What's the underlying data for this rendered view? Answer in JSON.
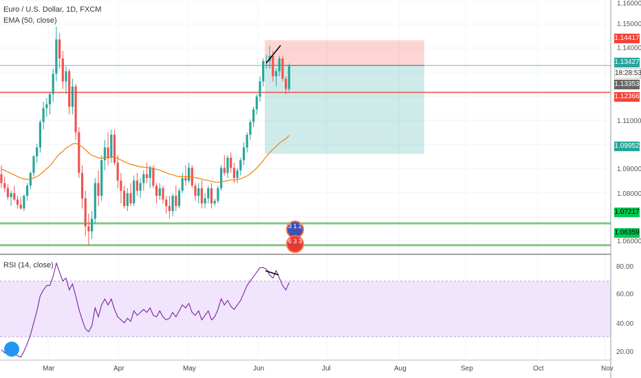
{
  "header": {
    "symbol_title": "Euro / U.S. Dollar, 1D, FXCM",
    "ema_label": "EMA (50, close)",
    "rsi_label": "RSI (14, close)"
  },
  "price_axis": {
    "labels": [
      "1.16000",
      "1.15000",
      "1.14000",
      "1.11000",
      "1.09000",
      "1.08000",
      "1.06000"
    ],
    "tags": {
      "t1": "1.14417",
      "t2": "1.13427",
      "timer": "18:28:53",
      "t3": "1.13353",
      "t4": "1.12366",
      "t5": "1.09952",
      "t6": "1.07217",
      "t7": "1.06359"
    }
  },
  "rsi_axis": {
    "labels": [
      "80.00",
      "60.00",
      "40.00",
      "20.00"
    ]
  },
  "time_axis": {
    "labels": [
      "Mar",
      "Apr",
      "May",
      "Jun",
      "Jul",
      "Aug",
      "Sep",
      "Oct",
      "Nov"
    ]
  },
  "events": {
    "top_text": "3 1 2",
    "bottom_text": "6 3 3"
  },
  "colors": {
    "up": "#26a69a",
    "down": "#ef5350",
    "ema": "#f57c00",
    "rsi": "#7b1fa2",
    "green_line": "#4caf50",
    "red_line": "#ef5350",
    "teal_line": "#26a69a",
    "accent_tag_red": "#f44336",
    "accent_tag_green": "#00c853"
  },
  "chart_data": {
    "type": "candlestick",
    "y_range": [
      1.06,
      1.16
    ],
    "rsi_range": [
      15,
      85
    ],
    "candles": [
      [
        1.0915,
        1.095,
        1.086,
        1.088
      ],
      [
        1.088,
        1.0905,
        1.0845,
        1.086
      ],
      [
        1.086,
        1.0875,
        1.0815,
        1.0825
      ],
      [
        1.0825,
        1.085,
        1.079,
        1.084
      ],
      [
        1.084,
        1.087,
        1.081,
        1.0815
      ],
      [
        1.0815,
        1.083,
        1.078,
        1.0795
      ],
      [
        1.0795,
        1.0825,
        1.0775,
        1.078
      ],
      [
        1.078,
        1.0835,
        1.077,
        1.083
      ],
      [
        1.083,
        1.088,
        1.081,
        1.087
      ],
      [
        1.087,
        1.0925,
        1.0855,
        1.092
      ],
      [
        1.092,
        1.099,
        1.0905,
        1.0985
      ],
      [
        1.0985,
        1.1035,
        1.096,
        1.102
      ],
      [
        1.102,
        1.113,
        1.1,
        1.112
      ],
      [
        1.112,
        1.12,
        1.109,
        1.1175
      ],
      [
        1.1175,
        1.1215,
        1.114,
        1.119
      ],
      [
        1.119,
        1.124,
        1.115,
        1.123
      ],
      [
        1.123,
        1.133,
        1.12,
        1.131
      ],
      [
        1.131,
        1.1495,
        1.128,
        1.1445
      ],
      [
        1.1445,
        1.147,
        1.133,
        1.137
      ],
      [
        1.137,
        1.14,
        1.125,
        1.128
      ],
      [
        1.128,
        1.134,
        1.123,
        1.132
      ],
      [
        1.132,
        1.133,
        1.115,
        1.118
      ],
      [
        1.118,
        1.129,
        1.115,
        1.126
      ],
      [
        1.126,
        1.127,
        1.105,
        1.108
      ],
      [
        1.108,
        1.11,
        1.09,
        1.092
      ],
      [
        1.092,
        1.095,
        1.078,
        1.082
      ],
      [
        1.082,
        1.085,
        1.067,
        1.071
      ],
      [
        1.071,
        1.076,
        1.0635,
        1.069
      ],
      [
        1.069,
        1.077,
        1.066,
        1.074
      ],
      [
        1.074,
        1.09,
        1.072,
        1.088
      ],
      [
        1.088,
        1.093,
        1.079,
        1.083
      ],
      [
        1.083,
        1.099,
        1.081,
        1.097
      ],
      [
        1.097,
        1.105,
        1.093,
        1.102
      ],
      [
        1.102,
        1.108,
        1.095,
        1.098
      ],
      [
        1.098,
        1.109,
        1.096,
        1.107
      ],
      [
        1.107,
        1.109,
        1.095,
        1.096
      ],
      [
        1.096,
        1.099,
        1.086,
        1.089
      ],
      [
        1.089,
        1.092,
        1.08,
        1.085
      ],
      [
        1.085,
        1.087,
        1.078,
        1.079
      ],
      [
        1.079,
        1.086,
        1.077,
        1.084
      ],
      [
        1.084,
        1.088,
        1.079,
        1.08
      ],
      [
        1.08,
        1.091,
        1.079,
        1.089
      ],
      [
        1.089,
        1.092,
        1.083,
        1.085
      ],
      [
        1.085,
        1.09,
        1.082,
        1.088
      ],
      [
        1.088,
        1.093,
        1.085,
        1.0915
      ],
      [
        1.0915,
        1.096,
        1.088,
        1.09
      ],
      [
        1.09,
        1.095,
        1.086,
        1.094
      ],
      [
        1.094,
        1.095,
        1.086,
        1.087
      ],
      [
        1.087,
        1.088,
        1.08,
        1.083
      ],
      [
        1.083,
        1.088,
        1.0815,
        1.086
      ],
      [
        1.086,
        1.087,
        1.08,
        1.0815
      ],
      [
        1.0815,
        1.083,
        1.076,
        1.079
      ],
      [
        1.079,
        1.083,
        1.074,
        1.077
      ],
      [
        1.077,
        1.084,
        1.075,
        1.083
      ],
      [
        1.083,
        1.087,
        1.077,
        1.079
      ],
      [
        1.079,
        1.086,
        1.078,
        1.085
      ],
      [
        1.085,
        1.092,
        1.084,
        1.09
      ],
      [
        1.09,
        1.095,
        1.087,
        1.089
      ],
      [
        1.089,
        1.096,
        1.088,
        1.094
      ],
      [
        1.094,
        1.095,
        1.086,
        1.087
      ],
      [
        1.087,
        1.088,
        1.081,
        1.083
      ],
      [
        1.083,
        1.088,
        1.08,
        1.086
      ],
      [
        1.086,
        1.089,
        1.078,
        1.08
      ],
      [
        1.08,
        1.084,
        1.078,
        1.082
      ],
      [
        1.082,
        1.087,
        1.08,
        1.086
      ],
      [
        1.086,
        1.088,
        1.078,
        1.08
      ],
      [
        1.08,
        1.082,
        1.079,
        1.081
      ],
      [
        1.081,
        1.087,
        1.08,
        1.086
      ],
      [
        1.086,
        1.095,
        1.085,
        1.094
      ],
      [
        1.094,
        1.099,
        1.091,
        1.092
      ],
      [
        1.092,
        1.099,
        1.09,
        1.098
      ],
      [
        1.098,
        1.1,
        1.092,
        1.094
      ],
      [
        1.094,
        1.096,
        1.088,
        1.09
      ],
      [
        1.09,
        1.094,
        1.088,
        1.093
      ],
      [
        1.093,
        1.098,
        1.091,
        1.097
      ],
      [
        1.097,
        1.104,
        1.095,
        1.102
      ],
      [
        1.102,
        1.108,
        1.1,
        1.107
      ],
      [
        1.107,
        1.113,
        1.105,
        1.112
      ],
      [
        1.112,
        1.118,
        1.11,
        1.117
      ],
      [
        1.117,
        1.123,
        1.115,
        1.122
      ],
      [
        1.122,
        1.13,
        1.12,
        1.128
      ],
      [
        1.128,
        1.137,
        1.126,
        1.136
      ],
      [
        1.136,
        1.1385,
        1.133,
        1.136
      ],
      [
        1.136,
        1.142,
        1.133,
        1.138
      ],
      [
        1.138,
        1.14,
        1.128,
        1.13
      ],
      [
        1.13,
        1.133,
        1.126,
        1.132
      ],
      [
        1.132,
        1.138,
        1.13,
        1.137
      ],
      [
        1.137,
        1.138,
        1.128,
        1.129
      ],
      [
        1.129,
        1.13,
        1.123,
        1.125
      ],
      [
        1.125,
        1.135,
        1.124,
        1.134
      ]
    ],
    "ema": [
      1.0935,
      1.093,
      1.0924,
      1.0918,
      1.0912,
      1.0906,
      1.09,
      1.0896,
      1.0895,
      1.0896,
      1.09,
      1.0905,
      1.0914,
      1.0925,
      1.0936,
      1.0948,
      1.0962,
      1.0981,
      1.0995,
      1.1005,
      1.1018,
      1.1025,
      1.1034,
      1.1036,
      1.1031,
      1.1023,
      1.1011,
      1.0999,
      1.0989,
      1.0985,
      1.0979,
      1.0978,
      1.0979,
      1.0979,
      1.0982,
      1.0981,
      1.0977,
      1.0971,
      1.0964,
      1.0959,
      1.0953,
      1.0951,
      1.0947,
      1.0944,
      1.0943,
      1.0941,
      1.0941,
      1.0938,
      1.0934,
      1.0931,
      1.0926,
      1.0921,
      1.0915,
      1.0913,
      1.0908,
      1.0906,
      1.0906,
      1.0905,
      1.0906,
      1.0904,
      1.0901,
      1.0899,
      1.0895,
      1.0892,
      1.0891,
      1.0887,
      1.0884,
      1.0883,
      1.0885,
      1.0887,
      1.089,
      1.0892,
      1.0892,
      1.0894,
      1.0897,
      1.0902,
      1.0908,
      1.0917,
      1.0927,
      1.0939,
      1.0953,
      1.0969,
      1.0985,
      1.1,
      1.1012,
      1.1024,
      1.1037,
      1.1046,
      1.1054,
      1.1067
    ],
    "rsi": [
      22,
      20,
      19,
      21,
      19,
      18,
      17,
      21,
      26,
      32,
      40,
      48,
      58,
      62,
      65,
      65,
      71,
      80,
      74,
      68,
      70,
      62,
      66,
      58,
      49,
      42,
      36,
      34,
      38,
      50,
      44,
      52,
      56,
      52,
      56,
      49,
      44,
      42,
      40,
      43,
      41,
      48,
      45,
      47,
      49,
      47,
      50,
      45,
      44,
      48,
      44,
      42,
      43,
      47,
      44,
      48,
      52,
      50,
      53,
      47,
      45,
      48,
      42,
      45,
      48,
      42,
      44,
      49,
      56,
      52,
      55,
      51,
      49,
      52,
      55,
      60,
      65,
      68,
      71,
      74,
      77,
      77,
      76,
      72,
      70,
      75,
      70,
      65,
      62,
      67
    ],
    "zones": {
      "position_top": 1.14417,
      "position_entry": 1.13427,
      "position_bottom": 1.09952,
      "hlines": [
        1.13353,
        1.12366,
        1.07217,
        1.06359
      ]
    }
  }
}
